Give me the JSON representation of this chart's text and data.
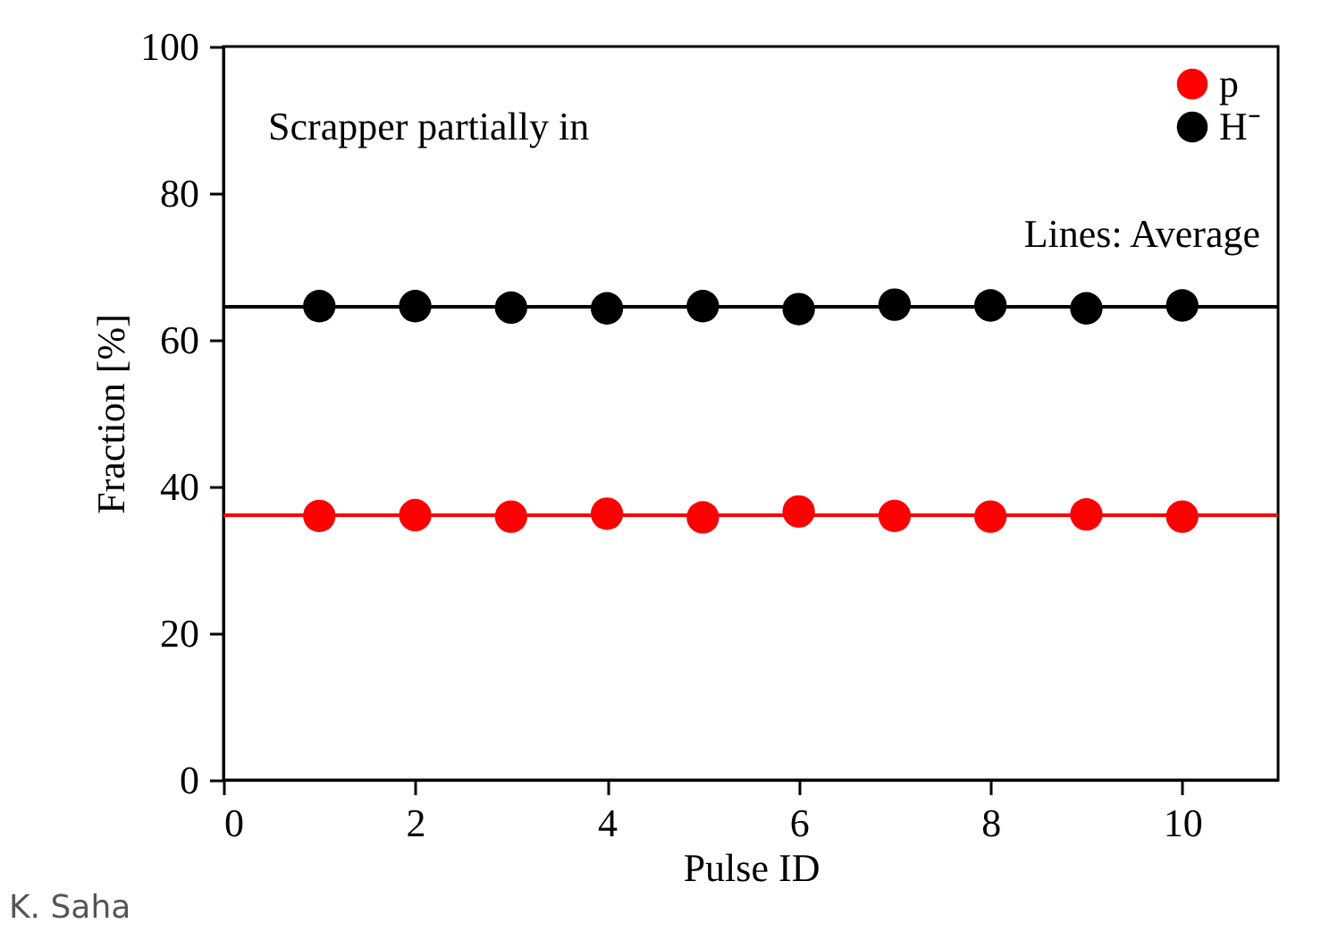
{
  "chart_data": {
    "type": "scatter",
    "xlabel": "Pulse ID",
    "ylabel": "Fraction [%]",
    "x": [
      1,
      2,
      3,
      4,
      5,
      6,
      7,
      8,
      9,
      10
    ],
    "series": [
      {
        "name": "p",
        "color": "#ff0000",
        "values": [
          36.0,
          36.1,
          35.9,
          36.3,
          35.8,
          36.6,
          36.0,
          35.9,
          36.2,
          35.9
        ]
      },
      {
        "name": "H⁻",
        "color": "#000000",
        "values": [
          64.6,
          64.6,
          64.4,
          64.3,
          64.6,
          64.2,
          64.8,
          64.7,
          64.3,
          64.7
        ]
      }
    ],
    "ref_lines": [
      {
        "axis": "y",
        "value": 36.1,
        "color": "#ff0000"
      },
      {
        "axis": "y",
        "value": 64.5,
        "color": "#000000"
      }
    ],
    "xlim": [
      0,
      11
    ],
    "xticks": [
      0,
      2,
      4,
      6,
      8,
      10
    ],
    "ylim": [
      0,
      100
    ],
    "yticks": [
      0,
      20,
      40,
      60,
      80,
      100
    ],
    "marker": "circle",
    "grid": false,
    "legend": "top right",
    "annotations": [
      "Scrapper partially in",
      "Lines: Average",
      "K. Saha"
    ]
  }
}
